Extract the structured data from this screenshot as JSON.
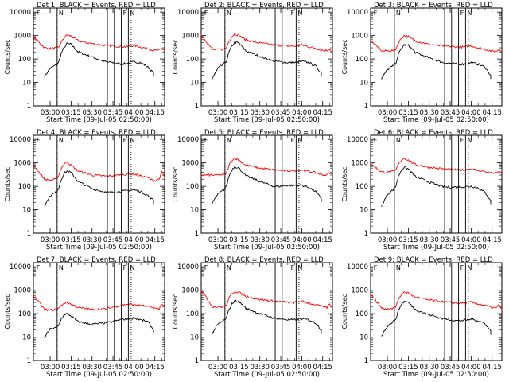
{
  "xticks": [
    "03:00",
    "03:15",
    "03:30",
    "03:45",
    "04:00",
    "04:15"
  ],
  "ylabel": "Counts/sec",
  "xlabel": "Start Time (09-Jul-05 02:50:00)",
  "panel_labels": [
    "F",
    "N",
    "F",
    "N"
  ],
  "colors": {
    "events": "#000000",
    "lld": "#ff0000"
  },
  "chart_data": [
    {
      "type": "line",
      "title": "Det 1: BLACK = Events, RED = LLD",
      "xlabel": "Start Time (09-Jul-05 02:50:00)",
      "ylabel": "Counts/sec",
      "ylim": [
        1,
        15000
      ],
      "yscale": "log",
      "x_range_min": [
        -2,
        92
      ],
      "data_range_min": [
        6,
        84
      ],
      "marker_lines_min": [
        15,
        51,
        56,
        61,
        66
      ],
      "dotted_lines_min": [
        15,
        68
      ],
      "series": [
        {
          "name": "Events",
          "x": [
            6,
            10,
            14,
            16,
            18,
            20,
            22,
            25,
            30,
            40,
            50,
            55,
            60,
            65,
            70,
            75,
            80,
            84
          ],
          "values": [
            18,
            40,
            55,
            70,
            180,
            300,
            450,
            420,
            200,
            120,
            75,
            70,
            60,
            65,
            75,
            70,
            45,
            25
          ]
        },
        {
          "name": "LLD",
          "x": [
            -2,
            6,
            10,
            14,
            16,
            18,
            20,
            22,
            25,
            30,
            40,
            50,
            55,
            60,
            65,
            70,
            75,
            80,
            84,
            88,
            90,
            92
          ],
          "values": [
            900,
            300,
            280,
            290,
            300,
            520,
            800,
            1050,
            950,
            600,
            450,
            380,
            360,
            340,
            330,
            380,
            320,
            280,
            230,
            230,
            280,
            230
          ]
        }
      ]
    },
    {
      "type": "line",
      "title": "Det 2: BLACK = Events, RED = LLD",
      "xlabel": "Start Time (09-Jul-05 02:50:00)",
      "ylabel": "Counts/sec",
      "ylim": [
        1,
        15000
      ],
      "yscale": "log",
      "x_range_min": [
        -2,
        92
      ],
      "data_range_min": [
        6,
        84
      ],
      "marker_lines_min": [
        15,
        51,
        56,
        61,
        66
      ],
      "dotted_lines_min": [
        15,
        68
      ],
      "series": [
        {
          "name": "Events",
          "x": [
            6,
            10,
            14,
            16,
            18,
            20,
            22,
            25,
            30,
            40,
            50,
            55,
            60,
            65,
            70,
            75,
            80,
            84
          ],
          "values": [
            15,
            40,
            60,
            80,
            200,
            350,
            520,
            480,
            220,
            130,
            80,
            75,
            70,
            70,
            80,
            70,
            50,
            25
          ]
        },
        {
          "name": "LLD",
          "x": [
            -2,
            6,
            10,
            14,
            16,
            18,
            20,
            22,
            25,
            30,
            40,
            50,
            55,
            60,
            65,
            70,
            75,
            80,
            84,
            88,
            90,
            92
          ],
          "values": [
            1100,
            250,
            250,
            260,
            300,
            600,
            900,
            1200,
            1000,
            650,
            480,
            400,
            380,
            360,
            350,
            400,
            330,
            290,
            240,
            230,
            270,
            180
          ]
        }
      ]
    },
    {
      "type": "line",
      "title": "Det 3: BLACK = Events, RED = LLD",
      "xlabel": "Start Time (09-Jul-05 02:50:00)",
      "ylabel": "Counts/sec",
      "ylim": [
        1,
        15000
      ],
      "yscale": "log",
      "x_range_min": [
        -2,
        92
      ],
      "data_range_min": [
        6,
        84
      ],
      "marker_lines_min": [
        15,
        51,
        56,
        61,
        66
      ],
      "dotted_lines_min": [
        15,
        68
      ],
      "series": [
        {
          "name": "Events",
          "x": [
            6,
            10,
            14,
            16,
            18,
            20,
            22,
            25,
            30,
            40,
            50,
            55,
            60,
            65,
            70,
            75,
            80,
            84
          ],
          "values": [
            15,
            35,
            50,
            65,
            160,
            280,
            400,
            380,
            190,
            110,
            70,
            65,
            60,
            60,
            70,
            60,
            45,
            20
          ]
        },
        {
          "name": "LLD",
          "x": [
            -2,
            6,
            10,
            14,
            16,
            18,
            20,
            22,
            25,
            30,
            40,
            50,
            55,
            60,
            65,
            70,
            75,
            80,
            84,
            88,
            90,
            92
          ],
          "values": [
            600,
            220,
            220,
            230,
            260,
            500,
            750,
            1000,
            900,
            600,
            420,
            360,
            340,
            330,
            320,
            370,
            300,
            260,
            220,
            210,
            260,
            210
          ]
        }
      ]
    },
    {
      "type": "line",
      "title": "Det 4: BLACK = Events, RED = LLD",
      "xlabel": "Start Time (09-Jul-05 02:50:00)",
      "ylabel": "Counts/sec",
      "ylim": [
        1,
        15000
      ],
      "yscale": "log",
      "x_range_min": [
        -2,
        92
      ],
      "data_range_min": [
        6,
        84
      ],
      "marker_lines_min": [
        15,
        51,
        56,
        61,
        66
      ],
      "dotted_lines_min": [
        15,
        68
      ],
      "series": [
        {
          "name": "Events",
          "x": [
            6,
            10,
            14,
            16,
            18,
            20,
            22,
            25,
            30,
            40,
            50,
            55,
            60,
            65,
            70,
            75,
            80,
            84
          ],
          "values": [
            15,
            40,
            55,
            80,
            200,
            350,
            450,
            380,
            160,
            80,
            55,
            55,
            60,
            65,
            70,
            60,
            40,
            25
          ]
        },
        {
          "name": "LLD",
          "x": [
            -2,
            6,
            10,
            14,
            16,
            18,
            20,
            22,
            25,
            30,
            40,
            50,
            55,
            60,
            65,
            70,
            75,
            80,
            84,
            88,
            90,
            92
          ],
          "values": [
            800,
            200,
            180,
            200,
            280,
            600,
            900,
            1100,
            800,
            450,
            300,
            270,
            280,
            300,
            330,
            330,
            280,
            230,
            170,
            200,
            400,
            250
          ]
        }
      ]
    },
    {
      "type": "line",
      "title": "Det 5: BLACK = Events, RED = LLD",
      "xlabel": "Start Time (09-Jul-05 02:50:00)",
      "ylabel": "Counts/sec",
      "ylim": [
        1,
        15000
      ],
      "yscale": "log",
      "x_range_min": [
        -2,
        92
      ],
      "data_range_min": [
        6,
        84
      ],
      "marker_lines_min": [
        15,
        51,
        56,
        61,
        66
      ],
      "dotted_lines_min": [
        15,
        68
      ],
      "series": [
        {
          "name": "Events",
          "x": [
            6,
            10,
            14,
            16,
            18,
            20,
            22,
            25,
            30,
            40,
            50,
            55,
            60,
            65,
            70,
            75,
            80,
            84
          ],
          "values": [
            20,
            45,
            70,
            100,
            280,
            500,
            700,
            600,
            280,
            160,
            100,
            100,
            110,
            110,
            110,
            90,
            60,
            30
          ]
        },
        {
          "name": "LLD",
          "x": [
            -2,
            6,
            10,
            14,
            16,
            18,
            20,
            22,
            25,
            30,
            40,
            50,
            55,
            60,
            65,
            70,
            75,
            80,
            84,
            88,
            90,
            92
          ],
          "values": [
            300,
            300,
            300,
            310,
            350,
            800,
            1300,
            1600,
            1300,
            800,
            600,
            500,
            470,
            460,
            460,
            500,
            430,
            380,
            320,
            300,
            380,
            300
          ]
        }
      ]
    },
    {
      "type": "line",
      "title": "Det 6: BLACK = Events, RED = LLD",
      "xlabel": "Start Time (09-Jul-05 02:50:00)",
      "ylabel": "Counts/sec",
      "ylim": [
        1,
        15000
      ],
      "yscale": "log",
      "x_range_min": [
        -2,
        92
      ],
      "data_range_min": [
        6,
        84
      ],
      "marker_lines_min": [
        15,
        51,
        56,
        61,
        66
      ],
      "dotted_lines_min": [
        15,
        68
      ],
      "series": [
        {
          "name": "Events",
          "x": [
            6,
            10,
            14,
            16,
            18,
            20,
            22,
            25,
            30,
            40,
            50,
            55,
            60,
            65,
            70,
            75,
            80,
            84
          ],
          "values": [
            15,
            45,
            70,
            100,
            270,
            480,
            650,
            550,
            260,
            150,
            95,
            90,
            95,
            95,
            100,
            85,
            55,
            25
          ]
        },
        {
          "name": "LLD",
          "x": [
            -2,
            6,
            10,
            14,
            16,
            18,
            20,
            22,
            25,
            30,
            40,
            50,
            55,
            60,
            65,
            70,
            75,
            80,
            84,
            88,
            90,
            92
          ],
          "values": [
            900,
            400,
            400,
            420,
            480,
            900,
            1300,
            1600,
            1300,
            850,
            650,
            550,
            520,
            500,
            500,
            550,
            470,
            420,
            380,
            360,
            420,
            360
          ]
        }
      ]
    },
    {
      "type": "line",
      "title": "Det 7: BLACK = Events, RED = LLD",
      "xlabel": "Start Time (09-Jul-05 02:50:00)",
      "ylabel": "Counts/sec",
      "ylim": [
        1,
        15000
      ],
      "yscale": "log",
      "x_range_min": [
        -2,
        92
      ],
      "data_range_min": [
        6,
        84
      ],
      "marker_lines_min": [
        15,
        51,
        56,
        61,
        66
      ],
      "dotted_lines_min": [
        15,
        68
      ],
      "series": [
        {
          "name": "Events",
          "x": [
            6,
            10,
            14,
            16,
            18,
            20,
            22,
            25,
            30,
            40,
            50,
            55,
            60,
            65,
            70,
            75,
            80,
            84
          ],
          "values": [
            10,
            22,
            25,
            30,
            60,
            90,
            100,
            80,
            45,
            35,
            40,
            45,
            55,
            60,
            65,
            55,
            45,
            20
          ]
        },
        {
          "name": "LLD",
          "x": [
            -2,
            6,
            10,
            14,
            16,
            18,
            20,
            22,
            25,
            30,
            40,
            50,
            55,
            60,
            65,
            70,
            75,
            80,
            84,
            88,
            90,
            92
          ],
          "values": [
            600,
            150,
            140,
            150,
            170,
            220,
            280,
            300,
            260,
            180,
            150,
            160,
            190,
            220,
            250,
            240,
            220,
            200,
            180,
            150,
            270,
            200
          ]
        }
      ]
    },
    {
      "type": "line",
      "title": "Det 8: BLACK = Events, RED = LLD",
      "xlabel": "Start Time (09-Jul-05 02:50:00)",
      "ylabel": "Counts/sec",
      "ylim": [
        1,
        15000
      ],
      "yscale": "log",
      "x_range_min": [
        -2,
        92
      ],
      "data_range_min": [
        6,
        84
      ],
      "marker_lines_min": [
        15,
        51,
        56,
        61,
        66
      ],
      "dotted_lines_min": [
        15,
        68
      ],
      "series": [
        {
          "name": "Events",
          "x": [
            6,
            10,
            14,
            16,
            18,
            20,
            22,
            25,
            30,
            40,
            50,
            55,
            60,
            65,
            70,
            75,
            80,
            84
          ],
          "values": [
            15,
            35,
            50,
            65,
            150,
            260,
            360,
            330,
            170,
            100,
            65,
            60,
            55,
            55,
            60,
            55,
            40,
            20
          ]
        },
        {
          "name": "LLD",
          "x": [
            -2,
            6,
            10,
            14,
            16,
            18,
            20,
            22,
            25,
            30,
            40,
            50,
            55,
            60,
            65,
            70,
            75,
            80,
            84,
            88,
            90,
            92
          ],
          "values": [
            1000,
            200,
            190,
            200,
            230,
            450,
            700,
            900,
            800,
            550,
            400,
            340,
            320,
            300,
            300,
            330,
            280,
            240,
            200,
            180,
            260,
            160
          ]
        }
      ]
    },
    {
      "type": "line",
      "title": "Det 9: BLACK = Events, RED = LLD",
      "xlabel": "Start Time (09-Jul-05 02:50:00)",
      "ylabel": "Counts/sec",
      "ylim": [
        1,
        15000
      ],
      "yscale": "log",
      "x_range_min": [
        -2,
        92
      ],
      "data_range_min": [
        6,
        84
      ],
      "marker_lines_min": [
        15,
        51,
        56,
        61,
        66
      ],
      "dotted_lines_min": [
        15,
        68
      ],
      "series": [
        {
          "name": "Events",
          "x": [
            6,
            10,
            14,
            16,
            18,
            20,
            22,
            25,
            30,
            40,
            50,
            55,
            60,
            65,
            70,
            75,
            80,
            84
          ],
          "values": [
            12,
            30,
            45,
            60,
            140,
            250,
            330,
            300,
            150,
            90,
            60,
            55,
            50,
            52,
            58,
            50,
            38,
            18
          ]
        },
        {
          "name": "LLD",
          "x": [
            -2,
            6,
            10,
            14,
            16,
            18,
            20,
            22,
            25,
            30,
            40,
            50,
            55,
            60,
            65,
            70,
            75,
            80,
            84,
            88,
            90,
            92
          ],
          "values": [
            700,
            170,
            160,
            170,
            200,
            400,
            650,
            850,
            750,
            500,
            380,
            320,
            300,
            280,
            280,
            310,
            260,
            220,
            190,
            170,
            240,
            150
          ]
        }
      ]
    }
  ]
}
